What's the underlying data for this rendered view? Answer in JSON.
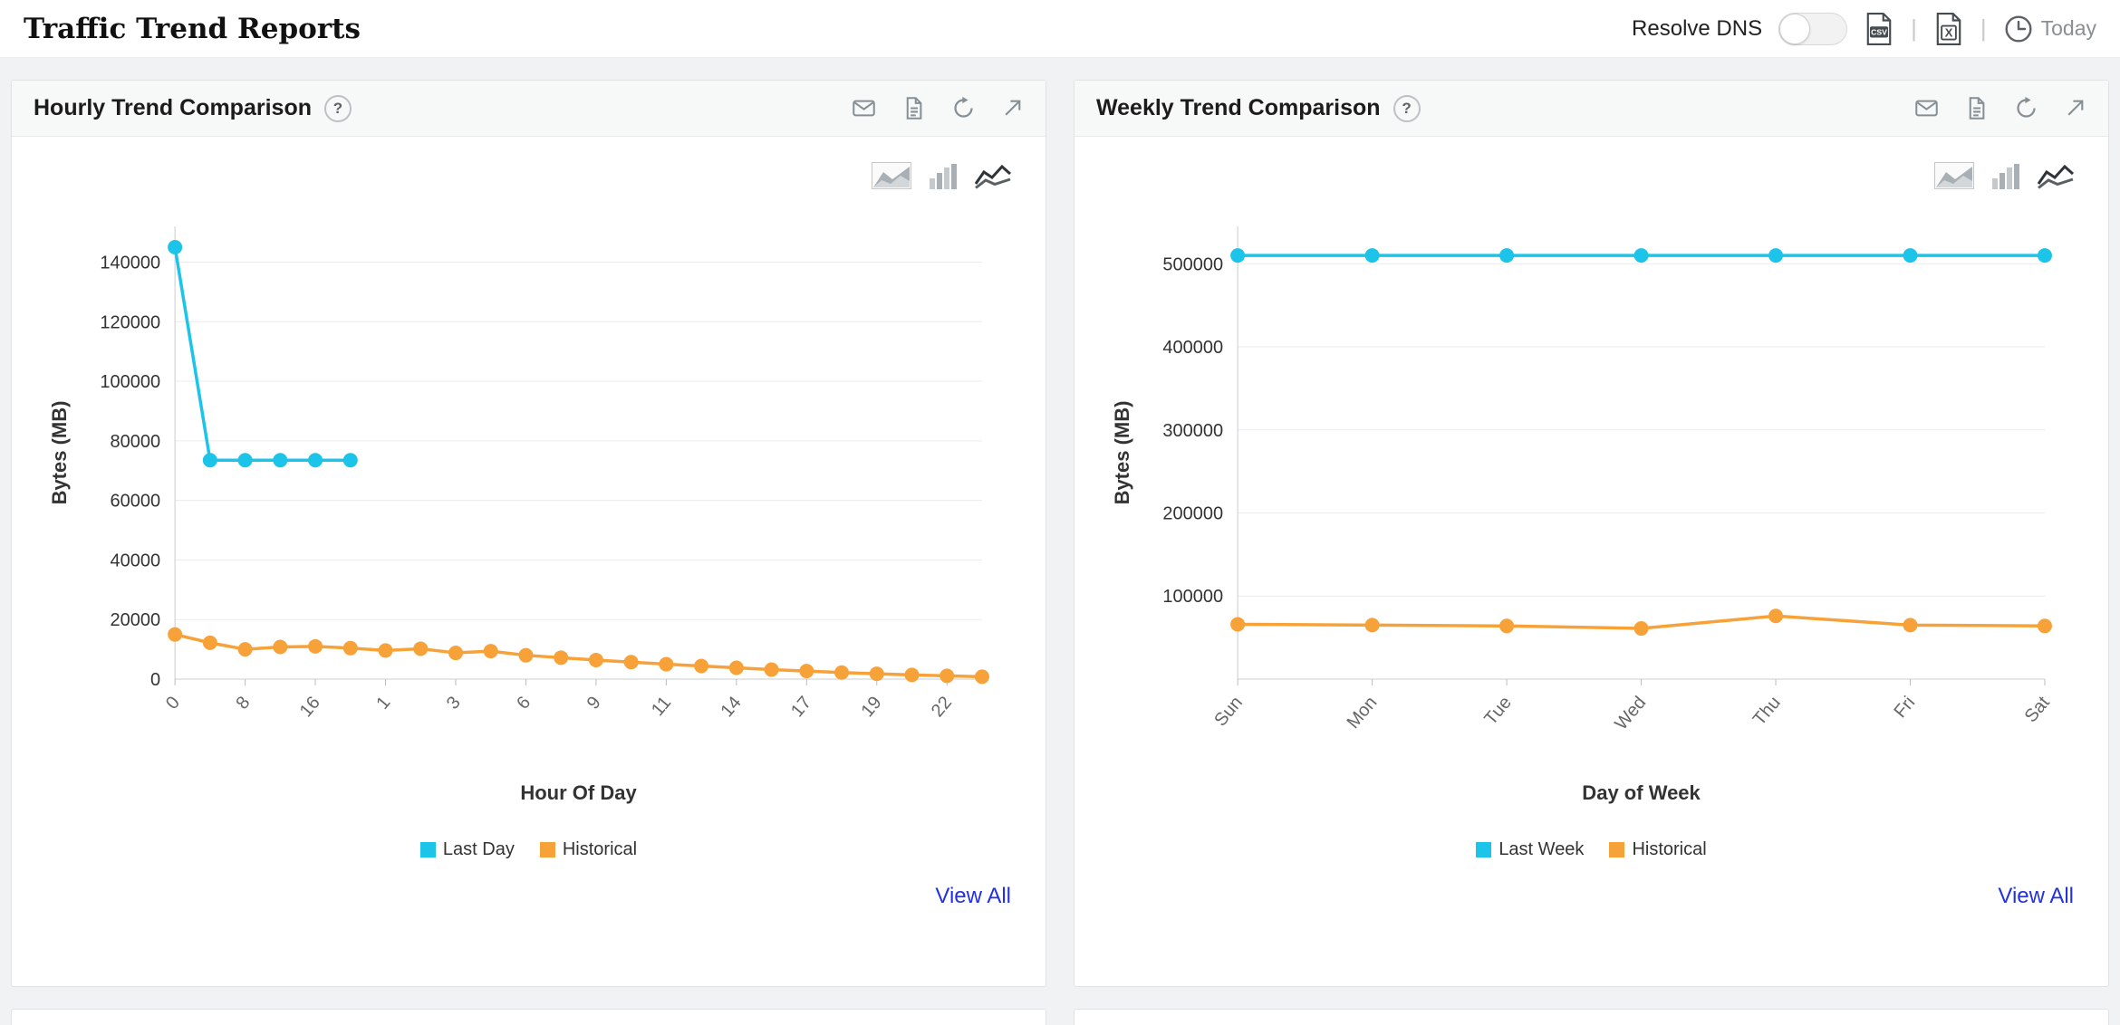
{
  "header": {
    "title": "Traffic Trend Reports",
    "resolve_dns_label": "Resolve DNS",
    "separator": "|",
    "csv_icon_text": "CSV",
    "excel_icon_text": "X",
    "period_label": "Today"
  },
  "panels": [
    {
      "title": "Hourly Trend Comparison",
      "help_label": "?",
      "view_all_label": "View All",
      "legend": [
        {
          "label": "Last Day",
          "color": "#1bc4e8"
        },
        {
          "label": "Historical",
          "color": "#f7a239"
        }
      ]
    },
    {
      "title": "Weekly Trend Comparison",
      "help_label": "?",
      "view_all_label": "View All",
      "legend": [
        {
          "label": "Last Week",
          "color": "#1bc4e8"
        },
        {
          "label": "Historical",
          "color": "#f7a239"
        }
      ]
    }
  ],
  "chart_data": [
    {
      "type": "line",
      "title": "Hourly Trend Comparison",
      "xlabel": "Hour Of Day",
      "ylabel": "Bytes (MB)",
      "ylim": [
        0,
        152000
      ],
      "yticks": [
        0,
        20000,
        40000,
        60000,
        80000,
        100000,
        120000,
        140000
      ],
      "x_count": 24,
      "grid": true,
      "legend_position": "bottom",
      "xticks": [
        {
          "index": 0,
          "label": "0"
        },
        {
          "index": 2,
          "label": "8"
        },
        {
          "index": 4,
          "label": "16"
        },
        {
          "index": 6,
          "label": "1"
        },
        {
          "index": 8,
          "label": "3"
        },
        {
          "index": 10,
          "label": "6"
        },
        {
          "index": 12,
          "label": "9"
        },
        {
          "index": 14,
          "label": "11"
        },
        {
          "index": 16,
          "label": "14"
        },
        {
          "index": 18,
          "label": "17"
        },
        {
          "index": 20,
          "label": "19"
        },
        {
          "index": 22,
          "label": "22"
        }
      ],
      "series": [
        {
          "name": "Last Day",
          "color": "#1bc4e8",
          "points": [
            [
              0,
              145000
            ],
            [
              1,
              73500
            ],
            [
              2,
              73500
            ],
            [
              3,
              73500
            ],
            [
              4,
              73500
            ],
            [
              5,
              73500
            ]
          ]
        },
        {
          "name": "Historical",
          "color": "#f7a239",
          "points": [
            [
              0,
              15000
            ],
            [
              1,
              12200
            ],
            [
              2,
              10000
            ],
            [
              3,
              10800
            ],
            [
              4,
              11000
            ],
            [
              5,
              10400
            ],
            [
              6,
              9600
            ],
            [
              7,
              10200
            ],
            [
              8,
              8800
            ],
            [
              9,
              9400
            ],
            [
              10,
              8000
            ],
            [
              11,
              7200
            ],
            [
              12,
              6400
            ],
            [
              13,
              5700
            ],
            [
              14,
              5000
            ],
            [
              15,
              4400
            ],
            [
              16,
              3800
            ],
            [
              17,
              3200
            ],
            [
              18,
              2700
            ],
            [
              19,
              2200
            ],
            [
              20,
              1800
            ],
            [
              21,
              1400
            ],
            [
              22,
              1100
            ],
            [
              23,
              800
            ]
          ]
        }
      ]
    },
    {
      "type": "line",
      "title": "Weekly Trend Comparison",
      "xlabel": "Day of Week",
      "ylabel": "Bytes (MB)",
      "ylim": [
        0,
        545000
      ],
      "yticks": [
        100000,
        200000,
        300000,
        400000,
        500000
      ],
      "x_count": 7,
      "grid": true,
      "legend_position": "bottom",
      "xticks": [
        {
          "index": 0,
          "label": "Sun"
        },
        {
          "index": 1,
          "label": "Mon"
        },
        {
          "index": 2,
          "label": "Tue"
        },
        {
          "index": 3,
          "label": "Wed"
        },
        {
          "index": 4,
          "label": "Thu"
        },
        {
          "index": 5,
          "label": "Fri"
        },
        {
          "index": 6,
          "label": "Sat"
        }
      ],
      "series": [
        {
          "name": "Last Week",
          "color": "#1bc4e8",
          "points": [
            [
              0,
              510000
            ],
            [
              1,
              510000
            ],
            [
              2,
              510000
            ],
            [
              3,
              510000
            ],
            [
              4,
              510000
            ],
            [
              5,
              510000
            ],
            [
              6,
              510000
            ]
          ]
        },
        {
          "name": "Historical",
          "color": "#f7a239",
          "points": [
            [
              0,
              66000
            ],
            [
              1,
              65000
            ],
            [
              2,
              64000
            ],
            [
              3,
              61000
            ],
            [
              4,
              76000
            ],
            [
              5,
              65000
            ],
            [
              6,
              64000
            ]
          ]
        }
      ]
    }
  ]
}
